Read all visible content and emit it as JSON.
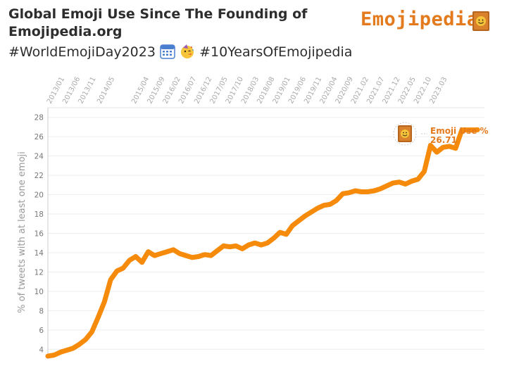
{
  "header": {
    "title": "Global Emoji Use Since The Founding of Emojipedia.org",
    "subtitle_part1": "#WorldEmojiDay2023",
    "subtitle_part2": "#10YearsOfEmojipedia",
    "subtitle_icons": [
      "calendar-icon",
      "party-face-icon"
    ]
  },
  "brand": {
    "name": "Emojipedia",
    "icon": "book-smiley-icon",
    "color": "#e37b1e"
  },
  "colors": {
    "line": "#f58a0b",
    "accent": "#e37b1e",
    "grid": "#eeeeee"
  },
  "chart_data": {
    "type": "line",
    "ylabel": "% of tweets with at least one emoji",
    "ylim": [
      3,
      29
    ],
    "y_ticks": [
      4,
      6,
      8,
      10,
      12,
      14,
      16,
      18,
      20,
      22,
      24,
      26,
      28
    ],
    "x_tick_labels": [
      "2013/01",
      "2013/06",
      "2013/11",
      "2014/05",
      "2015/04",
      "2015/09",
      "2016/02",
      "2016/07",
      "2016/12",
      "2017/05",
      "2017/10",
      "2018/03",
      "2018/08",
      "2019/01",
      "2019/06",
      "2019/11",
      "2020/04",
      "2020/09",
      "2021.02",
      "2021.07",
      "2021.12",
      "2022.05",
      "2022.10",
      "2023.03"
    ],
    "grid": true,
    "legend": "none",
    "series": [
      {
        "x": [
          "2013/01",
          "2013/03",
          "2013/05",
          "2013/07",
          "2013/09",
          "2013/11",
          "2014/01",
          "2014/03",
          "2014/05",
          "2014/07",
          "2014/09",
          "2014/11",
          "2015/01",
          "2015/03",
          "2015/05",
          "2015/07",
          "2015/09",
          "2015/11",
          "2016/01",
          "2016/03",
          "2016/05",
          "2016/07",
          "2016/09",
          "2016/11",
          "2017/01",
          "2017/03",
          "2017/05",
          "2017/07",
          "2017/09",
          "2017/11",
          "2018/01",
          "2018/03",
          "2018/05",
          "2018/07",
          "2018/09",
          "2018/11",
          "2019/01",
          "2019/03",
          "2019/05",
          "2019/07",
          "2019/09",
          "2019/11",
          "2020/01",
          "2020/03",
          "2020/05",
          "2020/07",
          "2020/09",
          "2020/11",
          "2021/01",
          "2021/03",
          "2021/05",
          "2021/07",
          "2021/09",
          "2021/11",
          "2022/01",
          "2022/03",
          "2022/05",
          "2022/07",
          "2022/09",
          "2022/11",
          "2023/01",
          "2023/03",
          "2023/05",
          "2023/07",
          "2023/09",
          "2023/11",
          "2024/01",
          "2024/03",
          "2024/05",
          "2024/06"
        ],
        "values": [
          3.3,
          3.4,
          3.7,
          3.9,
          4.1,
          4.5,
          5.0,
          5.8,
          7.3,
          8.9,
          11.2,
          12.1,
          12.4,
          13.2,
          13.6,
          13.0,
          14.1,
          13.7,
          13.9,
          14.1,
          14.3,
          13.9,
          13.7,
          13.5,
          13.6,
          13.8,
          13.7,
          14.2,
          14.7,
          14.6,
          14.7,
          14.4,
          14.8,
          15.0,
          14.8,
          15.0,
          15.5,
          16.1,
          15.9,
          16.8,
          17.3,
          17.8,
          18.2,
          18.6,
          18.9,
          19.0,
          19.4,
          20.1,
          20.2,
          20.4,
          20.3,
          20.3,
          20.4,
          20.6,
          20.9,
          21.2,
          21.3,
          21.1,
          21.4,
          21.6,
          22.4,
          25.1,
          24.4,
          24.9,
          25.0,
          24.8,
          26.7,
          26.7,
          26.7,
          26.71
        ]
      }
    ],
    "annotation": {
      "label": "Emoji Use %",
      "value": "26.71"
    }
  }
}
